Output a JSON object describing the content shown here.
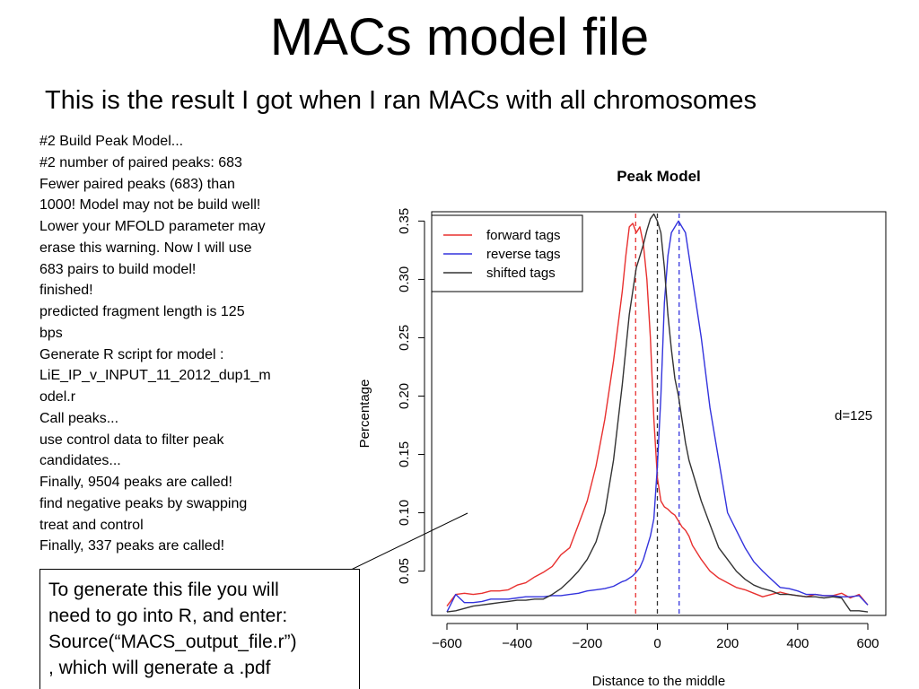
{
  "slide": {
    "title": "MACs model file",
    "subtitle": "This is the result I got when I ran MACs with all chromosomes"
  },
  "log_lines": [
    "#2 Build Peak Model...",
    "#2 number of paired peaks: 683",
    "Fewer paired peaks (683) than",
    "1000! Model may not be build well!",
    "Lower your MFOLD parameter may",
    "erase this warning. Now I will use",
    "683 pairs to build model!",
    "finished!",
    "predicted fragment length is 125",
    "bps",
    "Generate R script for model :",
    "LiE_IP_v_INPUT_11_2012_dup1_m",
    "odel.r",
    "Call peaks...",
    "use control data to filter peak",
    "candidates...",
    "Finally, 9504 peaks are called!",
    "find negative peaks by swapping",
    "treat and control",
    "Finally, 337 peaks are called!"
  ],
  "callout": {
    "lines": [
      "To generate this file you will",
      "need to go into R, and enter:",
      "Source(“MACS_output_file.r”)",
      ", which will generate a .pdf"
    ]
  },
  "chart_data": {
    "type": "line",
    "title": "Peak Model",
    "xlabel": "Distance to the middle",
    "ylabel": "Percentage",
    "xlim": [
      -600,
      600
    ],
    "ylim": [
      0.012,
      0.358
    ],
    "xticks": [
      -600,
      -400,
      -200,
      0,
      200,
      400,
      600
    ],
    "xtick_labels": [
      "−600",
      "−400",
      "−200",
      "0",
      "200",
      "400",
      "600"
    ],
    "yticks": [
      0.05,
      0.1,
      0.15,
      0.2,
      0.25,
      0.3,
      0.35
    ],
    "ytick_labels": [
      "0.05",
      "0.10",
      "0.15",
      "0.20",
      "0.25",
      "0.30",
      "0.35"
    ],
    "legend_position": "top-left",
    "annotation": "d=125",
    "vlines": [
      {
        "x": -62,
        "color": "#e8302f"
      },
      {
        "x": 0,
        "color": "#333333"
      },
      {
        "x": 62,
        "color": "#3333dd"
      }
    ],
    "x": [
      -600,
      -575,
      -550,
      -525,
      -500,
      -475,
      -450,
      -425,
      -400,
      -375,
      -350,
      -325,
      -300,
      -275,
      -250,
      -225,
      -200,
      -175,
      -150,
      -125,
      -100,
      -90,
      -80,
      -70,
      -60,
      -50,
      -40,
      -30,
      -20,
      -10,
      0,
      10,
      20,
      30,
      40,
      50,
      60,
      70,
      80,
      90,
      100,
      125,
      150,
      175,
      200,
      225,
      250,
      275,
      300,
      325,
      350,
      375,
      400,
      425,
      450,
      475,
      500,
      525,
      550,
      575,
      600
    ],
    "series": [
      {
        "name": "forward tags",
        "color": "#e8302f",
        "values": [
          0.02,
          0.03,
          0.031,
          0.03,
          0.031,
          0.033,
          0.033,
          0.034,
          0.038,
          0.04,
          0.045,
          0.049,
          0.054,
          0.064,
          0.07,
          0.09,
          0.11,
          0.14,
          0.18,
          0.23,
          0.29,
          0.32,
          0.345,
          0.348,
          0.34,
          0.345,
          0.33,
          0.3,
          0.25,
          0.18,
          0.13,
          0.11,
          0.105,
          0.103,
          0.1,
          0.098,
          0.093,
          0.088,
          0.085,
          0.08,
          0.072,
          0.06,
          0.05,
          0.044,
          0.04,
          0.036,
          0.034,
          0.031,
          0.028,
          0.03,
          0.032,
          0.03,
          0.029,
          0.028,
          0.03,
          0.029,
          0.029,
          0.031,
          0.027,
          0.03,
          0.021
        ]
      },
      {
        "name": "reverse tags",
        "color": "#3333dd",
        "values": [
          0.015,
          0.03,
          0.023,
          0.023,
          0.024,
          0.026,
          0.026,
          0.026,
          0.027,
          0.028,
          0.028,
          0.028,
          0.029,
          0.029,
          0.03,
          0.031,
          0.033,
          0.034,
          0.035,
          0.037,
          0.041,
          0.042,
          0.044,
          0.046,
          0.049,
          0.053,
          0.06,
          0.07,
          0.08,
          0.095,
          0.14,
          0.2,
          0.28,
          0.32,
          0.34,
          0.345,
          0.35,
          0.345,
          0.34,
          0.32,
          0.3,
          0.25,
          0.19,
          0.145,
          0.1,
          0.085,
          0.07,
          0.058,
          0.05,
          0.043,
          0.036,
          0.035,
          0.033,
          0.03,
          0.03,
          0.029,
          0.029,
          0.028,
          0.028,
          0.029,
          0.021
        ]
      },
      {
        "name": "shifted tags",
        "color": "#333333",
        "values": [
          0.015,
          0.016,
          0.018,
          0.02,
          0.021,
          0.022,
          0.023,
          0.024,
          0.025,
          0.025,
          0.026,
          0.026,
          0.03,
          0.035,
          0.042,
          0.05,
          0.06,
          0.075,
          0.1,
          0.145,
          0.21,
          0.24,
          0.27,
          0.29,
          0.31,
          0.32,
          0.33,
          0.342,
          0.352,
          0.356,
          0.35,
          0.34,
          0.31,
          0.27,
          0.24,
          0.215,
          0.2,
          0.18,
          0.16,
          0.145,
          0.135,
          0.11,
          0.09,
          0.07,
          0.06,
          0.05,
          0.043,
          0.038,
          0.035,
          0.033,
          0.03,
          0.03,
          0.029,
          0.028,
          0.028,
          0.027,
          0.028,
          0.027,
          0.016,
          0.016,
          0.015
        ]
      }
    ]
  }
}
